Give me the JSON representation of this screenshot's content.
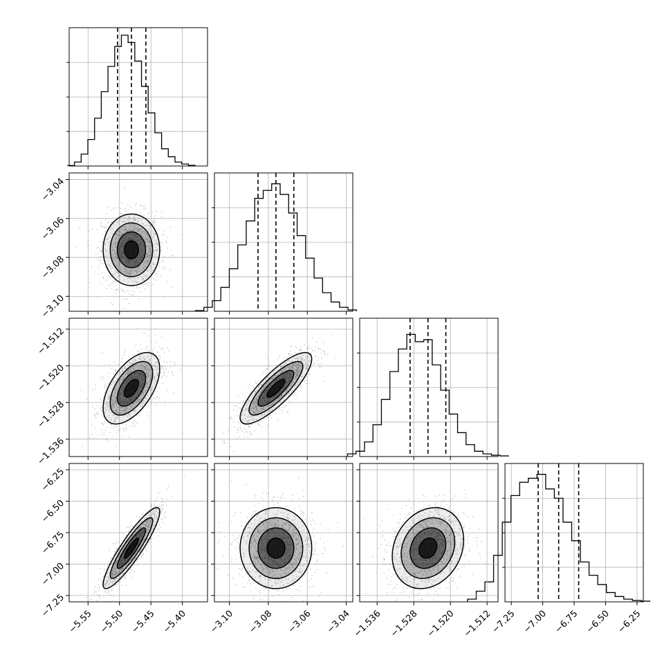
{
  "chart_data": {
    "type": "corner",
    "grid": true,
    "parameters": [
      {
        "range": [
          -5.58,
          -5.36
        ],
        "ticks": [
          -5.55,
          -5.5,
          -5.45,
          -5.4
        ],
        "tick_labels": [
          "−5.55",
          "−5.50",
          "−5.45",
          "−5.40"
        ],
        "quantiles": [
          -5.503,
          -5.481,
          -5.458
        ],
        "histogram": [
          0.004,
          0.03,
          0.09,
          0.2,
          0.36,
          0.56,
          0.75,
          0.9,
          0.985,
          0.93,
          0.79,
          0.6,
          0.4,
          0.25,
          0.13,
          0.07,
          0.03,
          0.015,
          0.005
        ]
      },
      {
        "range": [
          -3.1077,
          -3.0366
        ],
        "ticks": [
          -3.1,
          -3.08,
          -3.06,
          -3.04
        ],
        "tick_labels": [
          "−3.10",
          "−3.08",
          "−3.06",
          "−3.04"
        ],
        "quantiles": [
          -3.0853,
          -3.0761,
          -3.0669
        ],
        "histogram": [
          0.005,
          0.03,
          0.08,
          0.18,
          0.32,
          0.5,
          0.68,
          0.85,
          0.91,
          0.96,
          0.88,
          0.74,
          0.57,
          0.4,
          0.25,
          0.14,
          0.07,
          0.03,
          0.01
        ]
      },
      {
        "range": [
          -1.5398,
          -1.5096
        ],
        "ticks": [
          -1.536,
          -1.528,
          -1.52,
          -1.512
        ],
        "tick_labels": [
          "−1.536",
          "−1.528",
          "−1.520",
          "−1.512"
        ],
        "quantiles": [
          -1.5288,
          -1.5249,
          -1.521
        ],
        "histogram": [
          0.02,
          0.04,
          0.11,
          0.24,
          0.43,
          0.64,
          0.81,
          0.92,
          0.865,
          0.88,
          0.69,
          0.5,
          0.32,
          0.18,
          0.09,
          0.04,
          0.02,
          0.01,
          0.005
        ]
      },
      {
        "range": [
          -7.3,
          -6.2
        ],
        "ticks": [
          -7.25,
          -7.0,
          -6.75,
          -6.5,
          -6.25
        ],
        "tick_labels": [
          "−7.25",
          "−7.00",
          "−6.75",
          "−6.50",
          "−6.25"
        ],
        "quantiles": [
          -7.036,
          -6.873,
          -6.714
        ],
        "histogram": [
          0.02,
          0.08,
          0.15,
          0.35,
          0.6,
          0.8,
          0.9,
          0.93,
          0.96,
          0.85,
          0.78,
          0.6,
          0.46,
          0.3,
          0.2,
          0.13,
          0.07,
          0.04,
          0.02,
          0.01,
          0.005
        ]
      }
    ],
    "pairs": [
      {
        "x": 0,
        "y": 1,
        "mean": [
          -5.481,
          -3.0761
        ],
        "correlation": 0.0,
        "scale": 1.0
      },
      {
        "x": 0,
        "y": 2,
        "mean": [
          -5.481,
          -1.5249
        ],
        "correlation": 0.55,
        "scale": 1.0
      },
      {
        "x": 1,
        "y": 2,
        "mean": [
          -3.0761,
          -1.5249
        ],
        "correlation": 0.82,
        "scale": 1.0
      },
      {
        "x": 0,
        "y": 3,
        "mean": [
          -5.481,
          -6.873
        ],
        "correlation": 0.9,
        "scale": 1.0
      },
      {
        "x": 1,
        "y": 3,
        "mean": [
          -3.0761,
          -6.873
        ],
        "correlation": 0.0,
        "scale": 1.0
      },
      {
        "x": 2,
        "y": 3,
        "mean": [
          -1.5249,
          -6.873
        ],
        "correlation": 0.2,
        "scale": 1.0
      }
    ],
    "scatter_points_per_panel": 1200,
    "contour_levels_sigma": [
      0.5,
      1.0,
      1.5,
      2.0
    ],
    "colors": {
      "line": "#000000",
      "grid": "#b0b0b0",
      "scatter": "#9a9a9a",
      "density": "#000000"
    }
  }
}
